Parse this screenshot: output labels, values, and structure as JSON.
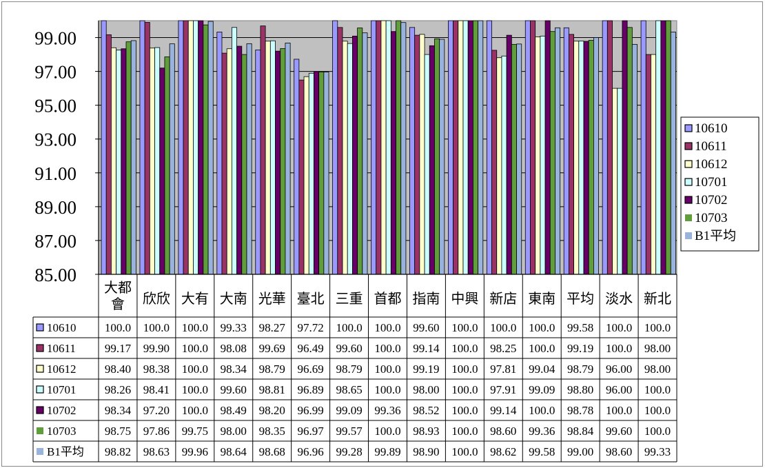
{
  "chart_data": {
    "type": "bar",
    "ylim": [
      85,
      100
    ],
    "y_ticks": [
      "99.00",
      "97.00",
      "95.00",
      "93.00",
      "91.00",
      "89.00",
      "87.00",
      "85.00"
    ],
    "y_tick_values": [
      99,
      97,
      95,
      93,
      91,
      89,
      87,
      85
    ],
    "legend_position": "right",
    "grid": true,
    "plot_background": "#c0c0c0",
    "categories": [
      "大都會",
      "欣欣",
      "大有",
      "大南",
      "光華",
      "臺北",
      "三重",
      "首都",
      "指南",
      "中興",
      "新店",
      "東南",
      "平均",
      "淡水",
      "新北"
    ],
    "category_lines": [
      [
        "大都",
        "會"
      ],
      [
        "欣欣"
      ],
      [
        "大有"
      ],
      [
        "大南"
      ],
      [
        "光華"
      ],
      [
        "臺北"
      ],
      [
        "三重"
      ],
      [
        "首都"
      ],
      [
        "指南"
      ],
      [
        "中興"
      ],
      [
        "新店"
      ],
      [
        "東南"
      ],
      [
        "平均"
      ],
      [
        "淡水"
      ],
      [
        "新北"
      ]
    ],
    "series": [
      {
        "name": "10610",
        "color": "#9999ff",
        "marker": "square-outline",
        "values": [
          100.0,
          100.0,
          100.0,
          99.33,
          98.27,
          97.72,
          100.0,
          100.0,
          99.6,
          100.0,
          100.0,
          100.0,
          99.58,
          100.0,
          100.0
        ],
        "labels": [
          "100.0",
          "100.0",
          "100.0",
          "99.33",
          "98.27",
          "97.72",
          "100.0",
          "100.0",
          "99.60",
          "100.0",
          "100.0",
          "100.0",
          "99.58",
          "100.0",
          "100.0"
        ]
      },
      {
        "name": "10611",
        "color": "#993366",
        "marker": "square-outline",
        "values": [
          99.17,
          99.9,
          100.0,
          98.08,
          99.69,
          96.49,
          99.6,
          100.0,
          99.14,
          100.0,
          98.25,
          100.0,
          99.19,
          100.0,
          98.0
        ],
        "labels": [
          "99.17",
          "99.90",
          "100.0",
          "98.08",
          "99.69",
          "96.49",
          "99.60",
          "100.0",
          "99.14",
          "100.0",
          "98.25",
          "100.0",
          "99.19",
          "100.0",
          "98.00"
        ]
      },
      {
        "name": "10612",
        "color": "#ffffcc",
        "marker": "square-outline",
        "values": [
          98.4,
          98.38,
          100.0,
          98.34,
          98.79,
          96.69,
          98.79,
          100.0,
          99.19,
          100.0,
          97.81,
          99.04,
          98.79,
          96.0,
          98.0
        ],
        "labels": [
          "98.40",
          "98.38",
          "100.0",
          "98.34",
          "98.79",
          "96.69",
          "98.79",
          "100.0",
          "99.19",
          "100.0",
          "97.81",
          "99.04",
          "98.79",
          "96.00",
          "98.00"
        ]
      },
      {
        "name": "10701",
        "color": "#ccffff",
        "marker": "square-outline",
        "values": [
          98.26,
          98.41,
          100.0,
          99.6,
          98.81,
          96.89,
          98.65,
          100.0,
          98.0,
          100.0,
          97.91,
          99.09,
          98.8,
          96.0,
          100.0
        ],
        "labels": [
          "98.26",
          "98.41",
          "100.0",
          "99.60",
          "98.81",
          "96.89",
          "98.65",
          "100.0",
          "98.00",
          "100.0",
          "97.91",
          "99.09",
          "98.80",
          "96.00",
          "100.0"
        ]
      },
      {
        "name": "10702",
        "color": "#660066",
        "marker": "square-outline",
        "values": [
          98.34,
          97.2,
          100.0,
          98.49,
          98.2,
          96.99,
          99.09,
          99.36,
          98.52,
          100.0,
          99.14,
          100.0,
          98.78,
          100.0,
          100.0
        ],
        "labels": [
          "98.34",
          "97.20",
          "100.0",
          "98.49",
          "98.20",
          "96.99",
          "99.09",
          "99.36",
          "98.52",
          "100.0",
          "99.14",
          "100.0",
          "98.78",
          "100.0",
          "100.0"
        ]
      },
      {
        "name": "10703",
        "color": "#5f9e3a",
        "marker": "square-filled",
        "values": [
          98.75,
          97.86,
          99.75,
          98.0,
          98.35,
          96.97,
          99.57,
          100.0,
          98.93,
          100.0,
          98.6,
          99.36,
          98.84,
          99.6,
          100.0
        ],
        "labels": [
          "98.75",
          "97.86",
          "99.75",
          "98.00",
          "98.35",
          "96.97",
          "99.57",
          "100.0",
          "98.93",
          "100.0",
          "98.60",
          "99.36",
          "98.84",
          "99.60",
          "100.0"
        ]
      },
      {
        "name": "B1平均",
        "color": "#99b3dd",
        "marker": "square-filled",
        "values": [
          98.82,
          98.63,
          99.96,
          98.64,
          98.68,
          96.96,
          99.28,
          99.89,
          98.9,
          100.0,
          98.62,
          99.58,
          99.0,
          98.6,
          99.33
        ],
        "labels": [
          "98.82",
          "98.63",
          "99.96",
          "98.64",
          "98.68",
          "96.96",
          "99.28",
          "99.89",
          "98.90",
          "100.0",
          "98.62",
          "99.58",
          "99.00",
          "98.60",
          "99.33"
        ]
      }
    ]
  }
}
